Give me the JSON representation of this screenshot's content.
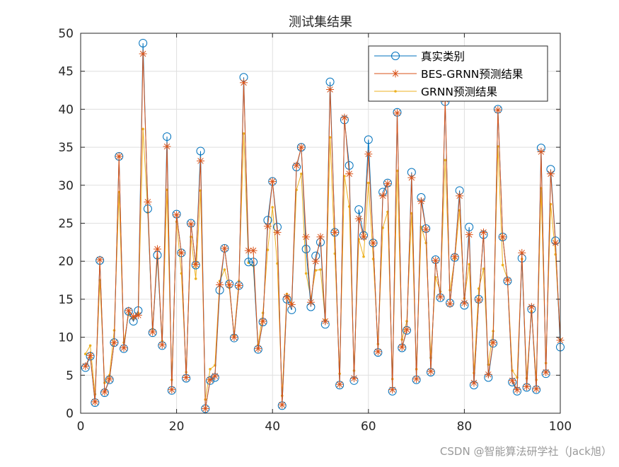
{
  "chart_data": {
    "type": "line",
    "title": "测试集结果",
    "xlabel": "",
    "ylabel": "",
    "xlim": [
      0,
      100
    ],
    "ylim": [
      0,
      50
    ],
    "grid": true,
    "legend_position": "top-right",
    "xticks": [
      0,
      20,
      40,
      60,
      80,
      100
    ],
    "yticks": [
      0,
      5,
      10,
      15,
      20,
      25,
      30,
      35,
      40,
      45,
      50
    ],
    "x": [
      1,
      2,
      3,
      4,
      5,
      6,
      7,
      8,
      9,
      10,
      11,
      12,
      13,
      14,
      15,
      16,
      17,
      18,
      19,
      20,
      21,
      22,
      23,
      24,
      25,
      26,
      27,
      28,
      29,
      30,
      31,
      32,
      33,
      34,
      35,
      36,
      37,
      38,
      39,
      40,
      41,
      42,
      43,
      44,
      45,
      46,
      47,
      48,
      49,
      50,
      51,
      52,
      53,
      54,
      55,
      56,
      57,
      58,
      59,
      60,
      61,
      62,
      63,
      64,
      65,
      66,
      67,
      68,
      69,
      70,
      71,
      72,
      73,
      74,
      75,
      76,
      77,
      78,
      79,
      80,
      81,
      82,
      83,
      84,
      85,
      86,
      87,
      88,
      89,
      90,
      91,
      92,
      93,
      94,
      95,
      96,
      97,
      98,
      99,
      100
    ],
    "series": [
      {
        "name": "真实类别",
        "color": "#0072BD",
        "marker": "circle",
        "line": true,
        "values": [
          6.0,
          7.5,
          1.4,
          20.1,
          2.7,
          4.4,
          9.3,
          33.8,
          8.5,
          13.4,
          12.1,
          13.5,
          48.7,
          26.9,
          10.6,
          20.8,
          8.9,
          36.4,
          3.0,
          26.2,
          21.1,
          4.6,
          25.0,
          19.5,
          34.5,
          0.6,
          4.3,
          4.7,
          16.2,
          21.7,
          17.0,
          9.9,
          16.8,
          44.2,
          19.9,
          19.9,
          8.4,
          12.0,
          25.4,
          30.5,
          24.5,
          1.0,
          15.0,
          13.6,
          32.4,
          35.0,
          21.6,
          14.0,
          20.7,
          22.5,
          11.7,
          43.6,
          23.8,
          3.7,
          38.6,
          32.6,
          4.3,
          26.8,
          23.4,
          36.0,
          22.4,
          8.0,
          29.1,
          30.3,
          2.9,
          39.6,
          8.6,
          10.9,
          31.7,
          4.4,
          28.4,
          24.3,
          5.4,
          20.2,
          15.2,
          41.0,
          14.5,
          20.5,
          29.3,
          14.2,
          24.5,
          3.7,
          15.0,
          23.5,
          4.7,
          9.2,
          40.0,
          23.2,
          17.4,
          4.1,
          2.9,
          20.4,
          3.4,
          13.7,
          3.1,
          34.9,
          5.2,
          32.1,
          22.7,
          8.7
        ]
      },
      {
        "name": "BES-GRNN预测结果",
        "color": "#D95319",
        "marker": "asterisk",
        "line": true,
        "values": [
          6.2,
          7.6,
          1.5,
          20.2,
          2.8,
          4.5,
          9.3,
          33.8,
          8.6,
          13.5,
          12.7,
          12.9,
          47.3,
          27.8,
          10.7,
          21.6,
          9.0,
          35.1,
          3.1,
          26.1,
          21.1,
          4.7,
          24.9,
          19.6,
          33.2,
          0.6,
          4.4,
          4.9,
          16.9,
          21.7,
          16.9,
          10.0,
          16.8,
          43.5,
          21.4,
          21.4,
          8.5,
          12.1,
          24.6,
          30.5,
          23.8,
          1.1,
          15.3,
          14.3,
          32.6,
          35.0,
          23.2,
          14.6,
          20.0,
          23.2,
          12.1,
          42.6,
          23.8,
          3.8,
          38.9,
          31.5,
          4.6,
          25.6,
          23.2,
          34.1,
          22.4,
          8.1,
          28.6,
          30.2,
          3.1,
          39.5,
          8.7,
          11.0,
          31.0,
          4.5,
          27.9,
          24.2,
          5.5,
          20.1,
          15.3,
          41.3,
          14.4,
          20.6,
          28.6,
          14.5,
          23.5,
          4.0,
          14.9,
          23.8,
          5.1,
          9.3,
          39.9,
          23.2,
          17.5,
          4.3,
          3.1,
          21.1,
          3.5,
          14.0,
          3.2,
          34.4,
          5.4,
          31.5,
          22.4,
          9.6
        ]
      },
      {
        "name": "GRNN预测结果",
        "color": "#EDB120",
        "marker": "point",
        "line": true,
        "values": [
          7.8,
          8.9,
          2.5,
          17.5,
          4.0,
          5.0,
          10.9,
          29.1,
          9.3,
          13.0,
          12.4,
          13.2,
          37.4,
          26.4,
          11.1,
          20.4,
          9.5,
          29.4,
          4.4,
          25.2,
          18.4,
          5.4,
          23.2,
          17.7,
          29.3,
          1.8,
          5.8,
          6.3,
          17.4,
          18.9,
          16.5,
          10.3,
          17.4,
          36.8,
          19.8,
          19.4,
          9.0,
          13.2,
          21.5,
          27.1,
          19.7,
          2.3,
          15.7,
          14.4,
          29.4,
          31.5,
          18.4,
          15.1,
          18.8,
          18.9,
          12.3,
          36.3,
          21.0,
          5.2,
          31.2,
          27.2,
          5.6,
          22.9,
          20.6,
          30.3,
          20.3,
          9.1,
          24.4,
          26.5,
          4.5,
          31.9,
          9.7,
          12.1,
          26.3,
          5.8,
          24.5,
          22.4,
          7.3,
          17.9,
          16.0,
          33.3,
          16.2,
          20.3,
          26.7,
          15.1,
          19.6,
          5.3,
          16.4,
          19.0,
          6.4,
          10.8,
          35.1,
          19.5,
          17.6,
          5.6,
          4.7,
          20.3,
          4.6,
          13.4,
          4.4,
          29.6,
          6.6,
          27.5,
          20.9,
          9.7
        ]
      }
    ]
  },
  "watermark": "CSDN @智能算法研学社（Jack旭）"
}
